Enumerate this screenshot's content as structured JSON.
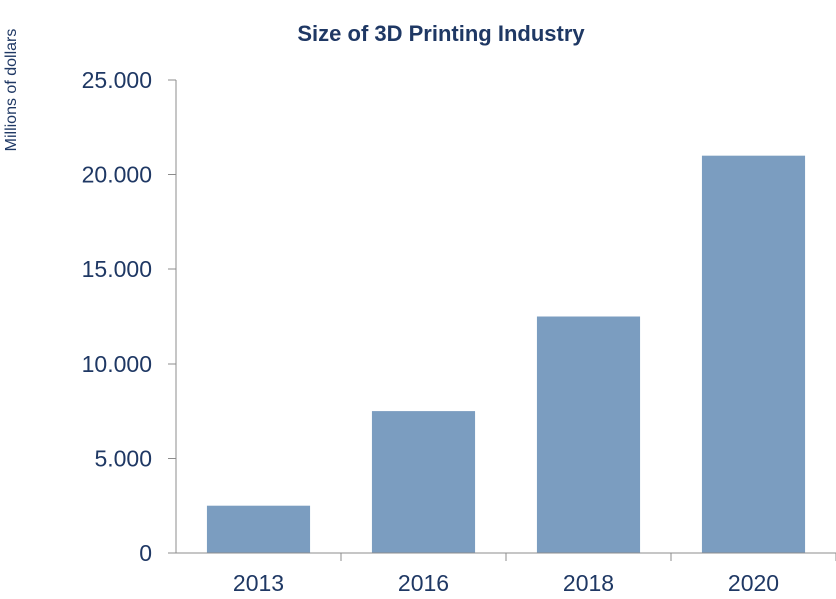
{
  "chart_data": {
    "type": "bar",
    "title": "Size of 3D Printing Industry",
    "ylabel": "Millions of dollars",
    "xlabel": "",
    "categories": [
      "2013",
      "2016",
      "2018",
      "2020"
    ],
    "values": [
      2500,
      7500,
      12500,
      21000
    ],
    "ylim": [
      0,
      25000
    ],
    "yticks": [
      0,
      5000,
      10000,
      15000,
      20000,
      25000
    ],
    "ytick_labels": [
      "0",
      "5.000",
      "10.000",
      "15.000",
      "20.000",
      "25.000"
    ],
    "grid": false,
    "legend": "none",
    "bar_color": "#7b9dc0",
    "text_color": "#1f3864",
    "axis_color": "#8c8c8c"
  }
}
